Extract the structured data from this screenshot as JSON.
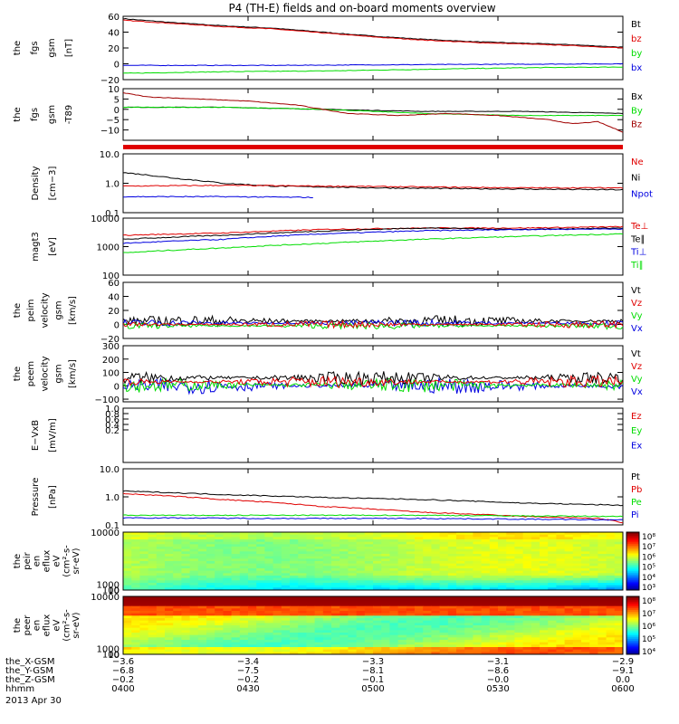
{
  "title": "P4 (TH-E) fields and on-board moments overview",
  "colors": {
    "black": "#000000",
    "red": "#e00000",
    "green": "#00dd00",
    "blue": "#0000e0",
    "darkred": "#a00000"
  },
  "chart_data": [
    {
      "type": "line",
      "id": "p1",
      "ylabel": [
        "the",
        "fgs",
        "gsm",
        "[nT]"
      ],
      "ylim": [
        -20,
        60
      ],
      "ticks": [
        "60",
        "40",
        "20",
        "0",
        "−20"
      ],
      "tickvals": [
        60,
        40,
        20,
        0,
        -20
      ],
      "legend": [
        {
          "name": "Bt",
          "color": "black"
        },
        {
          "name": "bz",
          "color": "red"
        },
        {
          "name": "by",
          "color": "green"
        },
        {
          "name": "bx",
          "color": "blue"
        }
      ],
      "series": [
        {
          "color": "black",
          "x": [
            0,
            0.1,
            0.2,
            0.3,
            0.4,
            0.5,
            0.6,
            0.7,
            0.8,
            0.9,
            1
          ],
          "y": [
            57,
            52,
            48,
            45,
            40,
            35,
            31,
            28,
            26,
            24,
            21
          ]
        },
        {
          "color": "red",
          "x": [
            0,
            0.1,
            0.2,
            0.3,
            0.4,
            0.5,
            0.6,
            0.7,
            0.8,
            0.9,
            1
          ],
          "y": [
            55,
            51,
            47,
            44,
            39,
            34,
            30,
            27,
            25,
            23,
            20
          ]
        },
        {
          "color": "green",
          "x": [
            0,
            0.2,
            0.4,
            0.6,
            0.8,
            1
          ],
          "y": [
            -12,
            -10,
            -9,
            -7,
            -5,
            -4
          ]
        },
        {
          "color": "blue",
          "x": [
            0,
            0.3,
            0.6,
            1
          ],
          "y": [
            -2,
            -2,
            -1,
            0
          ]
        }
      ]
    },
    {
      "type": "line",
      "id": "p2",
      "ylabel": [
        "the",
        "fgs",
        "gsm",
        "-T89"
      ],
      "ylim": [
        -15,
        10
      ],
      "ticks": [
        "10",
        "5",
        "0",
        "−5",
        "−10"
      ],
      "tickvals": [
        10,
        5,
        0,
        -5,
        -10
      ],
      "legend": [
        {
          "name": "Bx",
          "color": "black"
        },
        {
          "name": "By",
          "color": "green"
        },
        {
          "name": "Bz",
          "color": "darkred"
        }
      ],
      "series": [
        {
          "color": "black",
          "x": [
            0,
            0.2,
            0.4,
            0.6,
            0.8,
            1
          ],
          "y": [
            1,
            1,
            0,
            -1,
            -1,
            -2
          ]
        },
        {
          "color": "green",
          "x": [
            0,
            0.2,
            0.4,
            0.6,
            0.8,
            1
          ],
          "y": [
            1,
            1,
            0,
            -2,
            -3,
            -3
          ]
        },
        {
          "color": "darkred",
          "x": [
            0,
            0.05,
            0.15,
            0.25,
            0.35,
            0.45,
            0.55,
            0.65,
            0.75,
            0.85,
            0.9,
            0.95,
            1
          ],
          "y": [
            8,
            6,
            5,
            4,
            2,
            -2,
            -3,
            -2,
            -3,
            -5,
            -7,
            -6,
            -11
          ]
        }
      ]
    },
    {
      "type": "line",
      "id": "p3",
      "log": true,
      "ylabel": [
        "Density",
        "[cm−3]"
      ],
      "ylim": [
        0.1,
        10
      ],
      "ticks": [
        "10.0",
        "1.0",
        "0.1"
      ],
      "tickvals": [
        10,
        1,
        0.1
      ],
      "legend": [
        {
          "name": "Ne",
          "color": "red"
        },
        {
          "name": "Ni",
          "color": "black"
        },
        {
          "name": "Npot",
          "color": "blue"
        }
      ],
      "series": [
        {
          "color": "black",
          "x": [
            0,
            0.1,
            0.2,
            0.3,
            0.5,
            0.7,
            1
          ],
          "y": [
            2.3,
            1.5,
            1.0,
            0.8,
            0.7,
            0.65,
            0.6
          ]
        },
        {
          "color": "red",
          "x": [
            0,
            0.2,
            0.4,
            0.6,
            0.8,
            1
          ],
          "y": [
            0.8,
            0.85,
            0.8,
            0.75,
            0.7,
            0.7
          ]
        },
        {
          "color": "blue",
          "x": [
            0,
            0.2,
            0.38
          ],
          "y": [
            0.35,
            0.35,
            0.33
          ]
        }
      ]
    },
    {
      "type": "line",
      "id": "p4",
      "log": true,
      "ylabel": [
        "magt3",
        "[eV]"
      ],
      "ylim": [
        100,
        10000
      ],
      "ticks": [
        "10000",
        "1000",
        "100"
      ],
      "tickvals": [
        10000,
        1000,
        100
      ],
      "legend": [
        {
          "name": "Te⊥",
          "color": "red"
        },
        {
          "name": "Te∥",
          "color": "black"
        },
        {
          "name": "Ti⊥",
          "color": "blue"
        },
        {
          "name": "Ti∥",
          "color": "green"
        }
      ],
      "series": [
        {
          "color": "red",
          "x": [
            0,
            0.2,
            0.4,
            0.6,
            0.8,
            1
          ],
          "y": [
            2500,
            3000,
            4000,
            4500,
            4500,
            5000
          ]
        },
        {
          "color": "black",
          "x": [
            0,
            0.2,
            0.4,
            0.6,
            0.8,
            1
          ],
          "y": [
            1800,
            2500,
            3500,
            4500,
            4000,
            4500
          ]
        },
        {
          "color": "blue",
          "x": [
            0,
            0.2,
            0.4,
            0.6,
            0.8,
            1
          ],
          "y": [
            1300,
            1800,
            2800,
            3600,
            4000,
            4200
          ]
        },
        {
          "color": "green",
          "x": [
            0,
            0.2,
            0.4,
            0.6,
            0.8,
            1
          ],
          "y": [
            600,
            900,
            1300,
            1800,
            2300,
            2800
          ]
        }
      ]
    },
    {
      "type": "line",
      "id": "p5",
      "noisy": true,
      "ylabel": [
        "the",
        "peim",
        "velocity",
        "gsm",
        "[km/s]"
      ],
      "ylim": [
        -20,
        60
      ],
      "ticks": [
        "60",
        "40",
        "20",
        "0",
        "−20"
      ],
      "tickvals": [
        60,
        40,
        20,
        0,
        -20
      ],
      "legend": [
        {
          "name": "Vt",
          "color": "black"
        },
        {
          "name": "Vz",
          "color": "red"
        },
        {
          "name": "Vy",
          "color": "green"
        },
        {
          "name": "Vx",
          "color": "blue"
        }
      ],
      "series": [
        {
          "color": "black",
          "base": 5,
          "amp": 8
        },
        {
          "color": "blue",
          "base": 2,
          "amp": 5
        },
        {
          "color": "green",
          "base": -2,
          "amp": 5
        },
        {
          "color": "red",
          "base": 0,
          "amp": 5
        }
      ]
    },
    {
      "type": "line",
      "id": "p6",
      "noisy": true,
      "ylabel": [
        "the",
        "peem",
        "velocity",
        "gsm",
        "[km/s]"
      ],
      "ylim": [
        -120,
        300
      ],
      "ticks": [
        "300",
        "200",
        "100",
        "0",
        "−100"
      ],
      "tickvals": [
        300,
        200,
        100,
        0,
        -100
      ],
      "legend": [
        {
          "name": "Vt",
          "color": "black"
        },
        {
          "name": "Vz",
          "color": "red"
        },
        {
          "name": "Vy",
          "color": "green"
        },
        {
          "name": "Vx",
          "color": "blue"
        }
      ],
      "series": [
        {
          "color": "blue",
          "base": 0,
          "amp": 60
        },
        {
          "color": "green",
          "base": 5,
          "amp": 55
        },
        {
          "color": "black",
          "base": 60,
          "amp": 50
        },
        {
          "color": "red",
          "base": 30,
          "amp": 45
        }
      ]
    },
    {
      "type": "line",
      "id": "p7",
      "ylabel": [
        "E−VxB",
        "[mV/m]"
      ],
      "ylim": [
        -1,
        1
      ],
      "ticks": [
        "1.0",
        "0.8",
        "0.6",
        "0.4",
        "0.2"
      ],
      "tickvals": [
        1,
        0.8,
        0.6,
        0.4,
        0.2
      ],
      "legend": [
        {
          "name": "Ez",
          "color": "red"
        },
        {
          "name": "Ey",
          "color": "green"
        },
        {
          "name": "Ex",
          "color": "blue"
        }
      ],
      "series": []
    },
    {
      "type": "line",
      "id": "p8",
      "log": true,
      "ylabel": [
        "Pressure",
        "[nPa]"
      ],
      "ylim": [
        0.1,
        10
      ],
      "ticks": [
        "10.0",
        "1.0",
        "0.1"
      ],
      "tickvals": [
        10,
        1,
        0.1
      ],
      "legend": [
        {
          "name": "Pt",
          "color": "black"
        },
        {
          "name": "Pb",
          "color": "red"
        },
        {
          "name": "Pe",
          "color": "green"
        },
        {
          "name": "Pi",
          "color": "blue"
        }
      ],
      "series": [
        {
          "color": "black",
          "x": [
            0,
            0.2,
            0.4,
            0.6,
            0.8,
            1
          ],
          "y": [
            1.6,
            1.2,
            0.95,
            0.8,
            0.6,
            0.5
          ]
        },
        {
          "color": "red",
          "x": [
            0,
            0.2,
            0.4,
            0.6,
            0.8,
            0.95,
            1
          ],
          "y": [
            1.3,
            0.8,
            0.45,
            0.28,
            0.2,
            0.17,
            0.12
          ]
        },
        {
          "color": "green",
          "x": [
            0,
            0.3,
            0.6,
            1
          ],
          "y": [
            0.22,
            0.22,
            0.22,
            0.2
          ]
        },
        {
          "color": "blue",
          "x": [
            0,
            0.3,
            0.6,
            1
          ],
          "y": [
            0.18,
            0.17,
            0.17,
            0.15
          ]
        }
      ]
    },
    {
      "type": "heatmap",
      "id": "p9",
      "ylabel": [
        "the",
        "peir",
        "en",
        "eflux",
        "eV",
        "(cm²-s-",
        "sr-eV)"
      ],
      "ylim": [
        10,
        10000
      ],
      "ticks": [
        "10000",
        "1000",
        "100",
        "10"
      ],
      "tickvals": [
        10000,
        1000,
        100,
        10
      ],
      "colorbar": [
        "10⁸",
        "10⁷",
        "10⁶",
        "10⁵",
        "10⁴",
        "10³"
      ]
    },
    {
      "type": "heatmap",
      "id": "p10",
      "ylabel": [
        "the",
        "peer",
        "en",
        "eflux",
        "eV",
        "(cm²-s-",
        "sr-eV)"
      ],
      "ylim": [
        10,
        10000
      ],
      "ticks": [
        "10000",
        "1000",
        "100",
        "10"
      ],
      "tickvals": [
        10000,
        1000,
        100,
        10
      ],
      "colorbar": [
        "10⁸",
        "10⁷",
        "10⁶",
        "10⁵",
        "10⁴"
      ]
    }
  ],
  "xaxis": {
    "rows": [
      {
        "name": "the_X-GSM",
        "values": [
          "−3.6",
          "−3.4",
          "−3.3",
          "−3.1",
          "−2.9"
        ]
      },
      {
        "name": "the_Y-GSM",
        "values": [
          "−6.8",
          "−7.5",
          "−8.1",
          "−8.6",
          "−9.1"
        ]
      },
      {
        "name": "the_Z-GSM",
        "values": [
          "−0.2",
          "−0.2",
          "−0.1",
          "−0.0",
          "0.0"
        ]
      },
      {
        "name": "hhmm",
        "values": [
          "0400",
          "0430",
          "0500",
          "0530",
          "0600"
        ]
      }
    ],
    "date": "2013 Apr 30"
  }
}
